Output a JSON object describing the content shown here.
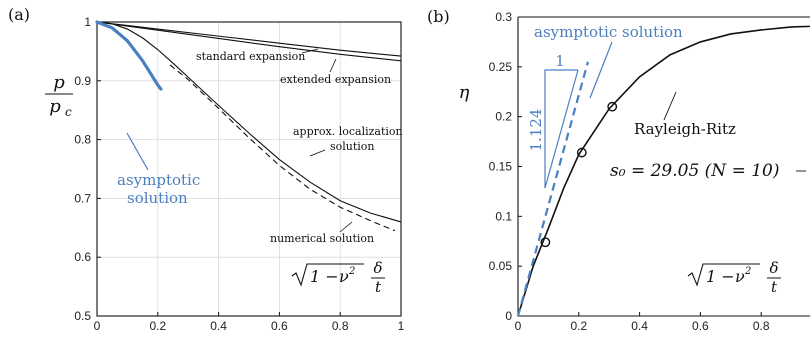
{
  "colors": {
    "accent": "#4a7fc0",
    "line": "#111111",
    "grid": "#d9d9d9"
  },
  "chart_data": [
    {
      "type": "line",
      "panel_label": "(a)",
      "ylabel": "p/p_c",
      "ylabel_num": "p",
      "ylabel_den": "p",
      "ylabel_den_sub": "c",
      "xlabel_text": "√(1−ν²) δ/t",
      "xlim": [
        0,
        1
      ],
      "ylim": [
        0.5,
        1
      ],
      "xticks": [
        0,
        0.2,
        0.4,
        0.6,
        0.8,
        1
      ],
      "xtick_labels": [
        "0",
        "0.2",
        "0.4",
        "0.6",
        "0.8",
        "1"
      ],
      "yticks": [
        0.5,
        0.6,
        0.7,
        0.8,
        0.9,
        1
      ],
      "ytick_labels": [
        "0.5",
        "0.6",
        "0.7",
        "0.8",
        "0.9",
        "1"
      ],
      "grid": true,
      "annotations": [
        {
          "text": "standard expansion"
        },
        {
          "text": "extended expansion"
        },
        {
          "text": "approx. localization"
        },
        {
          "text": "solution"
        },
        {
          "text": "numerical solution"
        },
        {
          "text": "asymptotic"
        },
        {
          "text": "solution"
        }
      ],
      "series": [
        {
          "style": "solid",
          "x": [
            0,
            0.2,
            0.4,
            0.6,
            0.8,
            1
          ],
          "y": [
            1,
            0.988,
            0.976,
            0.964,
            0.952,
            0.942
          ]
        },
        {
          "style": "solid",
          "x": [
            0,
            0.2,
            0.4,
            0.6,
            0.8,
            1
          ],
          "y": [
            1,
            0.986,
            0.972,
            0.958,
            0.945,
            0.934
          ]
        },
        {
          "style": "solid",
          "x": [
            0,
            0.05,
            0.1,
            0.15,
            0.2,
            0.25,
            0.3,
            0.4,
            0.5,
            0.6,
            0.7,
            0.8,
            0.9,
            1
          ],
          "y": [
            1,
            0.997,
            0.988,
            0.973,
            0.953,
            0.93,
            0.906,
            0.858,
            0.811,
            0.766,
            0.728,
            0.696,
            0.675,
            0.66
          ]
        },
        {
          "style": "dashed",
          "x": [
            0.24,
            0.3,
            0.4,
            0.5,
            0.6,
            0.7,
            0.8,
            0.9,
            0.98
          ],
          "y": [
            0.927,
            0.902,
            0.853,
            0.803,
            0.756,
            0.716,
            0.685,
            0.662,
            0.645
          ]
        },
        {
          "style": "thick-blue",
          "x": [
            0,
            0.05,
            0.1,
            0.15,
            0.2,
            0.21
          ],
          "y": [
            1,
            0.99,
            0.968,
            0.934,
            0.893,
            0.886
          ]
        }
      ]
    },
    {
      "type": "line",
      "panel_label": "(b)",
      "ylabel": "η",
      "xlabel_text": "√(1−ν²) δ/t",
      "xlim": [
        0,
        1
      ],
      "ylim": [
        0,
        0.3
      ],
      "xticks": [
        0,
        0.2,
        0.4,
        0.6,
        0.8
      ],
      "xtick_labels": [
        "0",
        "0.2",
        "0.4",
        "0.6",
        "0.8"
      ],
      "yticks": [
        0,
        0.05,
        0.1,
        0.15,
        0.2,
        0.25,
        0.3
      ],
      "ytick_labels": [
        "0",
        "0.05",
        "0.1",
        "0.15",
        "0.2",
        "0.25",
        "0.3"
      ],
      "grid": false,
      "annotations": [
        {
          "text": "asymptotic solution"
        },
        {
          "text": "Rayleigh-Ritz"
        },
        {
          "text": "s₀ = 29.05  (N = 10)"
        },
        {
          "text": "1"
        },
        {
          "text": "1.124"
        }
      ],
      "series": [
        {
          "style": "solid",
          "x": [
            0,
            0.05,
            0.1,
            0.15,
            0.2,
            0.3,
            0.4,
            0.5,
            0.6,
            0.7,
            0.8,
            0.9,
            1
          ],
          "y": [
            0,
            0.05,
            0.088,
            0.128,
            0.162,
            0.208,
            0.24,
            0.262,
            0.275,
            0.283,
            0.287,
            0.29,
            0.291
          ]
        },
        {
          "style": "dashed-blue",
          "x": [
            0,
            0.23
          ],
          "y": [
            0,
            0.255
          ]
        }
      ],
      "markers": {
        "x": [
          0.09,
          0.21,
          0.31
        ],
        "y": [
          0.074,
          0.164,
          0.21
        ]
      }
    }
  ]
}
